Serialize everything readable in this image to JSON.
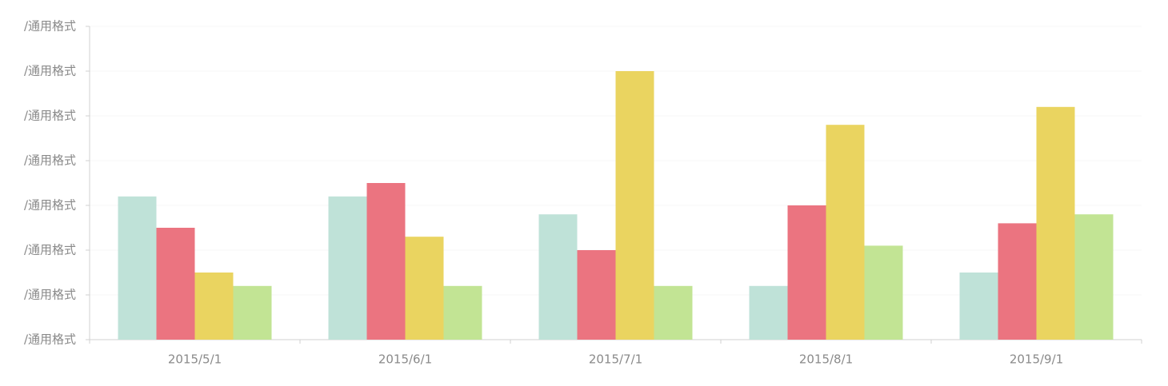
{
  "chart_data": {
    "type": "bar",
    "categories": [
      "2015/5/1",
      "2015/6/1",
      "2015/7/1",
      "2015/8/1",
      "2015/9/1"
    ],
    "series": [
      {
        "color": "#bfe2d8",
        "values": [
          3.2,
          3.2,
          2.8,
          1.2,
          1.5
        ]
      },
      {
        "color": "#eb7480",
        "values": [
          2.5,
          3.5,
          2.0,
          3.0,
          2.6
        ]
      },
      {
        "color": "#ead460",
        "values": [
          1.5,
          2.3,
          6.0,
          4.8,
          5.2
        ]
      },
      {
        "color": "#c2e494",
        "values": [
          1.2,
          1.2,
          1.2,
          2.1,
          2.8
        ]
      }
    ],
    "ylim": [
      0,
      7
    ],
    "yticks": [
      {
        "value": 0,
        "label": "/通用格式"
      },
      {
        "value": 1,
        "label": "/通用格式"
      },
      {
        "value": 2,
        "label": "/通用格式"
      },
      {
        "value": 3,
        "label": "/通用格式"
      },
      {
        "value": 4,
        "label": "/通用格式"
      },
      {
        "value": 5,
        "label": "/通用格式"
      },
      {
        "value": 6,
        "label": "/通用格式"
      },
      {
        "value": 7,
        "label": "/通用格式"
      }
    ],
    "grid": true
  }
}
